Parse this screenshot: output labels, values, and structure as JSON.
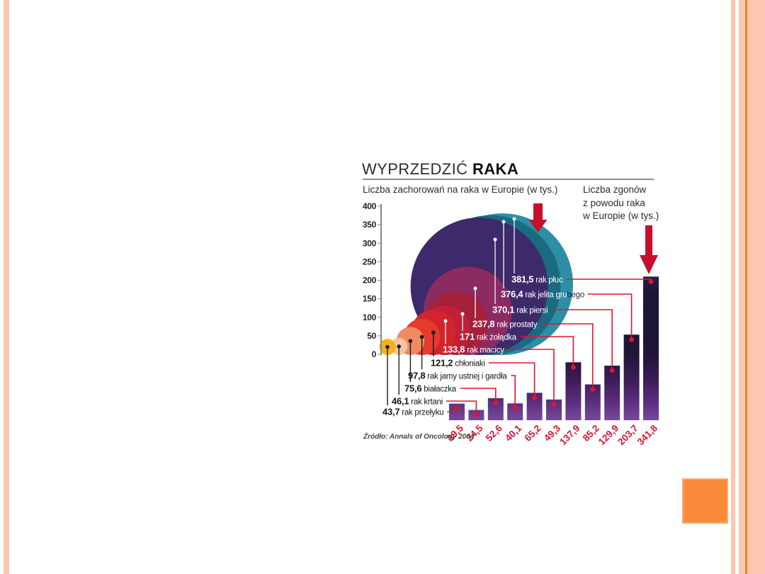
{
  "slide": {
    "background": "#ffffff",
    "accent_salmon": "#fcc7ae",
    "accent_orange": "#fb8a3a",
    "accent_orange_line": "#f9822f"
  },
  "infographic": {
    "title_regular": "WYPRZEDZIĆ",
    "title_bold": "RAKA",
    "subtitle_left": "Liczba zachorowań na raka w Europie (w tys.)",
    "subtitle_right_lines": [
      "Liczba zgonów",
      "z powodu raka",
      "w Europie (w tys.)"
    ],
    "source": "Źródło: Annals of Oncology 2004"
  },
  "chart_data": {
    "type": "bubble+bar",
    "title": "WYPRZEDZIĆ RAKA",
    "left_axis": {
      "label": "Liczba zachorowań na raka w Europie (w tys.)",
      "ticks": [
        400,
        350,
        300,
        250,
        200,
        150,
        100,
        50,
        0
      ],
      "range": [
        0,
        400
      ]
    },
    "right_label": "Liczba zgonów z powodu raka w Europie (w tys.)",
    "series_note": "cases = bubble size (incidence, thousands); deaths = bar height (thousands)",
    "series": [
      {
        "name": "rak przełyku",
        "cases": "43,7",
        "deaths": "39,5",
        "color": "#f6b21b"
      },
      {
        "name": "rak krtani",
        "cases": "46,1",
        "deaths": "24,5",
        "color": "#f8c59e"
      },
      {
        "name": "białaczka",
        "cases": "75,6",
        "deaths": "52,6",
        "color": "#f08a62"
      },
      {
        "name": "rak jamy ustnej i gardła",
        "cases": "97,8",
        "deaths": "40,1",
        "color": "#e63a2c"
      },
      {
        "name": "chłoniaki",
        "cases": "121,2",
        "deaths": "65,2",
        "color": "#d2242c"
      },
      {
        "name": "rak macicy",
        "cases": "133,8",
        "deaths": "49,3",
        "color": "#c22038"
      },
      {
        "name": "rak żołądka",
        "cases": "171",
        "deaths": "137,9",
        "color": "#a61f3b"
      },
      {
        "name": "rak prostaty",
        "cases": "237,8",
        "deaths": "85,2",
        "color": "#8c2a62"
      },
      {
        "name": "rak piersi",
        "cases": "370,1",
        "deaths": "129,9",
        "color": "#3d2a6b"
      },
      {
        "name": "rak jelita grubego",
        "cases": "376,4",
        "deaths": "203,7",
        "color": "#1a6b82"
      },
      {
        "name": "rak płuc",
        "cases": "381,5",
        "deaths": "341,8",
        "color": "#2d8fa6"
      }
    ],
    "source": "Źródło: Annals of Oncology 2004",
    "colors": {
      "red": "#e0142f",
      "arrow": "#c70f2b",
      "bar_gradient_top": "#1b1733",
      "bar_gradient_bottom": "#77499c",
      "axis": "#8a8a8a"
    },
    "legend_position": "none",
    "grid": false
  }
}
